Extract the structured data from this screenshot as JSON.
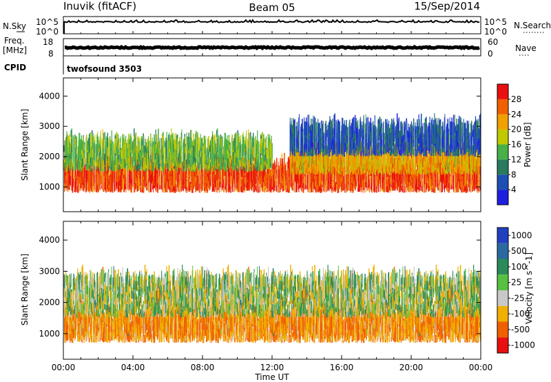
{
  "header": {
    "station": "Inuvik (fitACF)",
    "beam": "Beam 05",
    "date": "15/Sep/2014"
  },
  "panels": {
    "nsky_label": "N.Sky",
    "nsearch_label": "N.Search",
    "freq_label_line1": "Freq.",
    "freq_label_line2": "[MHz]",
    "nave_label": "Nave",
    "cpid_label": "CPID",
    "cpid_value": "twofsound 3503",
    "nsky_ticks": [
      "10^5",
      "10^0"
    ],
    "nsearch_ticks": [
      "10^5",
      "10^0"
    ],
    "freq_ticks": [
      "18",
      "8"
    ],
    "nave_ticks": [
      "60",
      "0"
    ]
  },
  "chart_data": [
    {
      "type": "heatmap",
      "title": "",
      "xlabel": "Time UT",
      "ylabel": "Slant Range [km]",
      "x_ticks": [
        "00:00",
        "04:00",
        "08:00",
        "12:00",
        "16:00",
        "20:00",
        "00:00"
      ],
      "x_range_hours": [
        0,
        24
      ],
      "y_ticks": [
        1000,
        2000,
        3000,
        4000
      ],
      "ylim": [
        180,
        4600
      ],
      "colorbar": {
        "label": "Power [dB]",
        "ticks": [
          "4",
          "8",
          "12",
          "16",
          "20",
          "24",
          "28"
        ],
        "range": [
          0,
          30
        ],
        "colors": [
          "#1f1fe0",
          "#1e50b4",
          "#2a7a5e",
          "#48b048",
          "#c0c800",
          "#f0a000",
          "#f06000",
          "#e81010"
        ]
      },
      "scatter_bands": [
        {
          "t_start": 0,
          "t_end": 24,
          "range_low": 800,
          "range_high": 1500,
          "typical_dB": 26
        },
        {
          "t_start": 0,
          "t_end": 12,
          "range_low": 1500,
          "range_high": 2300,
          "typical_dB": 14
        },
        {
          "t_start": 13,
          "t_end": 24,
          "range_low": 1400,
          "range_high": 2000,
          "typical_dB": 20
        },
        {
          "t_start": 13,
          "t_end": 24,
          "range_low": 2000,
          "range_high": 2800,
          "typical_dB": 6
        }
      ]
    },
    {
      "type": "heatmap",
      "title": "",
      "xlabel": "Time UT",
      "ylabel": "Slant Range [km]",
      "x_ticks": [
        "00:00",
        "04:00",
        "08:00",
        "12:00",
        "16:00",
        "20:00",
        "00:00"
      ],
      "x_range_hours": [
        0,
        24
      ],
      "y_ticks": [
        1000,
        2000,
        3000,
        4000
      ],
      "ylim": [
        180,
        4600
      ],
      "colorbar": {
        "label": "Velocity [m s^-1]",
        "ticks": [
          "1000",
          "500",
          "100",
          "25",
          "-25",
          "-100",
          "-500",
          "-1000"
        ],
        "colors": [
          "#2040c0",
          "#2a6aa0",
          "#2a8a5a",
          "#58c040",
          "#c8c8c8",
          "#f0b000",
          "#f06000",
          "#e81010"
        ]
      },
      "scatter_bands": [
        {
          "t_start": 0,
          "t_end": 24,
          "range_low": 700,
          "range_high": 1500,
          "typical_velocity": -100
        },
        {
          "t_start": 0,
          "t_end": 24,
          "range_low": 1500,
          "range_high": 2600,
          "typical_velocity": 0
        }
      ]
    }
  ]
}
